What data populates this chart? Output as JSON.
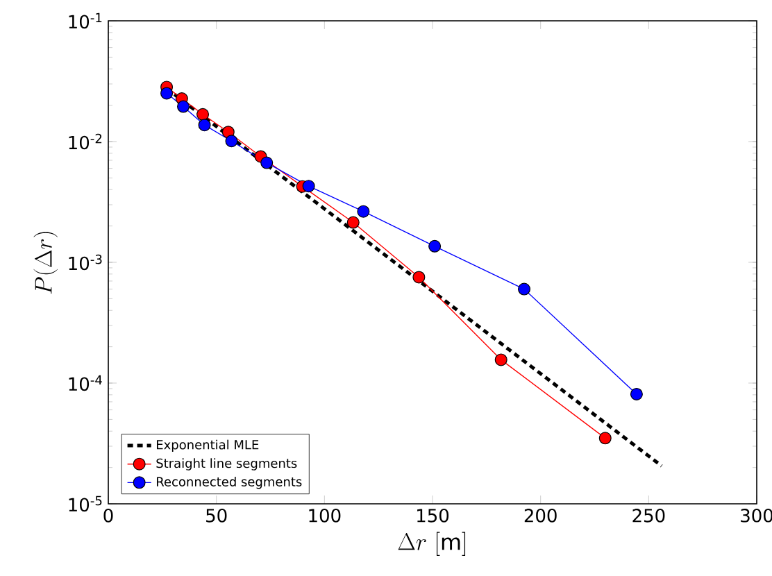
{
  "chart_data": {
    "type": "line",
    "xlabel": "\\Delta r\\ [\\mathrm{m}]",
    "ylabel": "P(\\Delta r)",
    "xlim": [
      0,
      300
    ],
    "xticks": [
      0,
      50,
      100,
      150,
      200,
      250,
      300
    ],
    "ylim": [
      1e-05,
      0.1
    ],
    "yticks": [
      {
        "value": 1e-05,
        "label": "10$^{-5}$"
      },
      {
        "value": 0.0001,
        "label": "10$^{-4}$"
      },
      {
        "value": 0.001,
        "label": "10$^{-3}$"
      },
      {
        "value": 0.01,
        "label": "10$^{-2}$"
      },
      {
        "value": 0.1,
        "label": "10$^{-1}$"
      }
    ],
    "log": "y",
    "legend": "bottom left",
    "marker": "circle",
    "series": [
      {
        "name": "Exponential MLE",
        "color": "#000000",
        "marker": "none",
        "line_style": "dashed",
        "x": [
          27,
          256
        ],
        "values": [
          0.0275,
          2.06e-05
        ]
      },
      {
        "name": "Straight line segments",
        "color": "#ff0000",
        "x": [
          27,
          34,
          43.7,
          55.5,
          70.5,
          89.8,
          113.3,
          143.7,
          181.7,
          229.9
        ],
        "values": [
          0.0283,
          0.0227,
          0.0168,
          0.012,
          0.00753,
          0.00425,
          0.00214,
          0.000753,
          0.000156,
          3.5e-05
        ]
      },
      {
        "name": "Reconnected segments",
        "color": "#0000ff",
        "x": [
          27,
          34.7,
          44.5,
          57,
          73.3,
          92.7,
          118,
          151,
          192.4,
          244.4
        ],
        "values": [
          0.0251,
          0.0195,
          0.0137,
          0.0101,
          0.00667,
          0.00428,
          0.00264,
          0.00136,
          0.0006,
          8.1e-05
        ]
      }
    ]
  }
}
